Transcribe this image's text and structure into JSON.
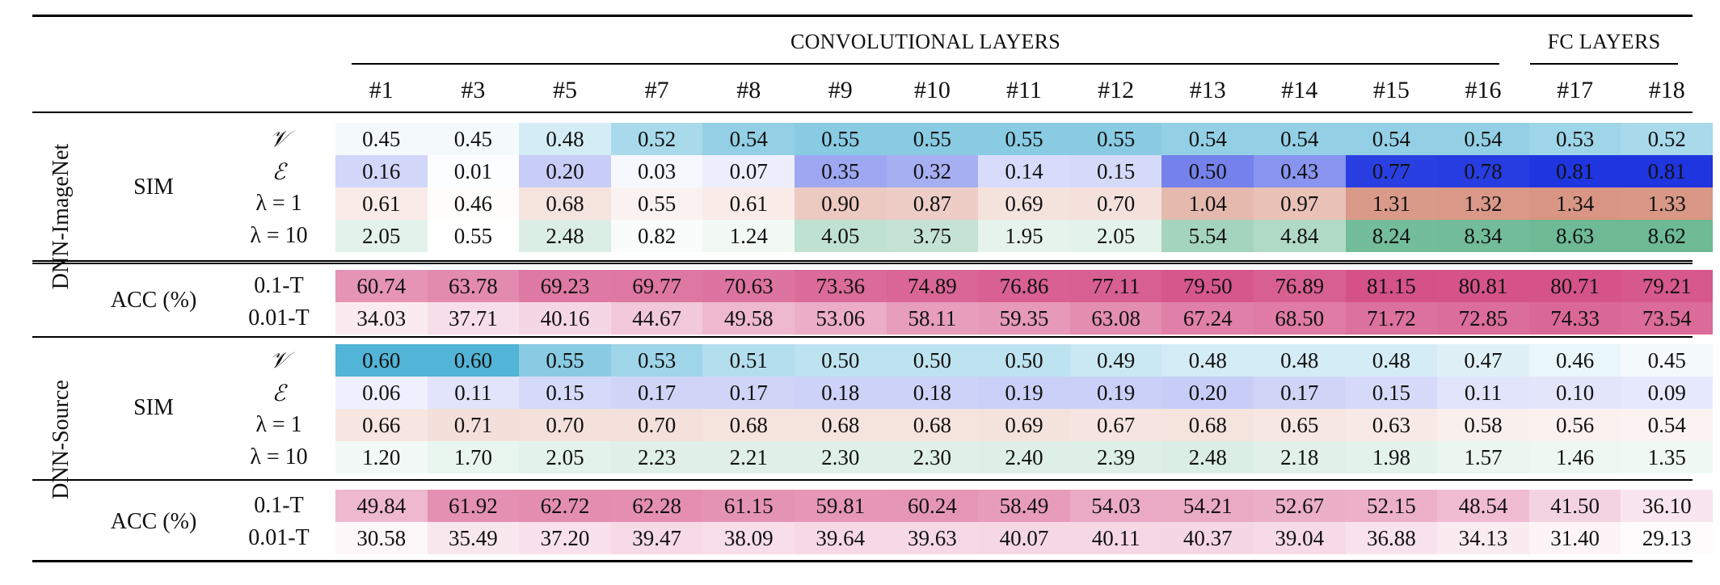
{
  "table": {
    "group_headers": {
      "conv": "CONVOLUTIONAL LAYERS",
      "fc": "FC LAYERS"
    },
    "columns": [
      "#1",
      "#3",
      "#5",
      "#7",
      "#8",
      "#9",
      "#10",
      "#11",
      "#12",
      "#13",
      "#14",
      "#15",
      "#16",
      "#17",
      "#18"
    ],
    "sections": [
      {
        "name": "DNN-ImageNet",
        "sim_label": "SIM",
        "acc_label": "ACC (%)",
        "sim_rows": [
          {
            "label": "𝒱",
            "kind": "V",
            "values": [
              "0.45",
              "0.45",
              "0.48",
              "0.52",
              "0.54",
              "0.55",
              "0.55",
              "0.55",
              "0.55",
              "0.54",
              "0.54",
              "0.54",
              "0.54",
              "0.53",
              "0.52"
            ]
          },
          {
            "label": "ℰ",
            "kind": "E",
            "values": [
              "0.16",
              "0.01",
              "0.20",
              "0.03",
              "0.07",
              "0.35",
              "0.32",
              "0.14",
              "0.15",
              "0.50",
              "0.43",
              "0.77",
              "0.78",
              "0.81",
              "0.81"
            ]
          },
          {
            "label": "λ = 1",
            "kind": "L1",
            "values": [
              "0.61",
              "0.46",
              "0.68",
              "0.55",
              "0.61",
              "0.90",
              "0.87",
              "0.69",
              "0.70",
              "1.04",
              "0.97",
              "1.31",
              "1.32",
              "1.34",
              "1.33"
            ]
          },
          {
            "label": "λ = 10",
            "kind": "L10",
            "values": [
              "2.05",
              "0.55",
              "2.48",
              "0.82",
              "1.24",
              "4.05",
              "3.75",
              "1.95",
              "2.05",
              "5.54",
              "4.84",
              "8.24",
              "8.34",
              "8.63",
              "8.62"
            ]
          }
        ],
        "acc_rows": [
          {
            "label": "0.1-T",
            "kind": "ACC",
            "values": [
              "60.74",
              "63.78",
              "69.23",
              "69.77",
              "70.63",
              "73.36",
              "74.89",
              "76.86",
              "77.11",
              "79.50",
              "76.89",
              "81.15",
              "80.81",
              "80.71",
              "79.21"
            ]
          },
          {
            "label": "0.01-T",
            "kind": "ACC",
            "values": [
              "34.03",
              "37.71",
              "40.16",
              "44.67",
              "49.58",
              "53.06",
              "58.11",
              "59.35",
              "63.08",
              "67.24",
              "68.50",
              "71.72",
              "72.85",
              "74.33",
              "73.54"
            ]
          }
        ]
      },
      {
        "name": "DNN-Source",
        "sim_label": "SIM",
        "acc_label": "ACC (%)",
        "sim_rows": [
          {
            "label": "𝒱",
            "kind": "V",
            "values": [
              "0.60",
              "0.60",
              "0.55",
              "0.53",
              "0.51",
              "0.50",
              "0.50",
              "0.50",
              "0.49",
              "0.48",
              "0.48",
              "0.48",
              "0.47",
              "0.46",
              "0.45"
            ]
          },
          {
            "label": "ℰ",
            "kind": "E",
            "values": [
              "0.06",
              "0.11",
              "0.15",
              "0.17",
              "0.17",
              "0.18",
              "0.18",
              "0.19",
              "0.19",
              "0.20",
              "0.17",
              "0.15",
              "0.11",
              "0.10",
              "0.09"
            ]
          },
          {
            "label": "λ = 1",
            "kind": "L1",
            "values": [
              "0.66",
              "0.71",
              "0.70",
              "0.70",
              "0.68",
              "0.68",
              "0.68",
              "0.69",
              "0.67",
              "0.68",
              "0.65",
              "0.63",
              "0.58",
              "0.56",
              "0.54"
            ]
          },
          {
            "label": "λ = 10",
            "kind": "L10",
            "values": [
              "1.20",
              "1.70",
              "2.05",
              "2.23",
              "2.21",
              "2.30",
              "2.30",
              "2.40",
              "2.39",
              "2.48",
              "2.18",
              "1.98",
              "1.57",
              "1.46",
              "1.35"
            ]
          }
        ],
        "acc_rows": [
          {
            "label": "0.1-T",
            "kind": "ACC",
            "values": [
              "49.84",
              "61.92",
              "62.72",
              "62.28",
              "61.15",
              "59.81",
              "60.24",
              "58.49",
              "54.03",
              "54.21",
              "52.67",
              "52.15",
              "48.54",
              "41.50",
              "36.10"
            ]
          },
          {
            "label": "0.01-T",
            "kind": "ACC",
            "values": [
              "30.58",
              "35.49",
              "37.20",
              "39.47",
              "38.09",
              "39.64",
              "39.63",
              "40.07",
              "40.11",
              "40.37",
              "39.04",
              "36.88",
              "34.13",
              "31.40",
              "29.13"
            ]
          }
        ]
      }
    ],
    "color_scales": {
      "V": {
        "base": "#52b4d6",
        "min": 0.44,
        "max": 0.6
      },
      "E": {
        "base": "#1f35e0",
        "min": 0.0,
        "max": 0.81
      },
      "L1": {
        "base": "#d99685",
        "min": 0.44,
        "max": 1.34
      },
      "L10": {
        "base": "#6dba95",
        "min": 0.5,
        "max": 8.63
      },
      "ACC": {
        "base": "#d44f86",
        "min": 28,
        "max": 82
      }
    }
  }
}
